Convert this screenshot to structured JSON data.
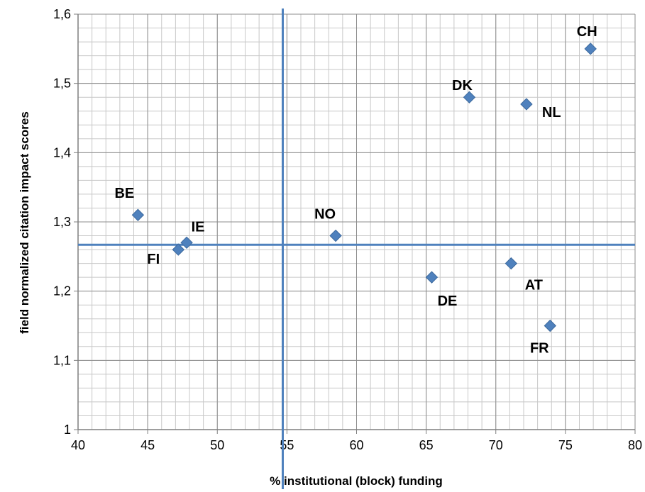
{
  "chart_data": {
    "type": "scatter",
    "title": "",
    "xlabel": "% institutional (block) funding",
    "ylabel": "field normalized citation impact scores",
    "xlim": [
      40,
      80
    ],
    "ylim": [
      1.0,
      1.6
    ],
    "x_ticks": [
      40,
      45,
      50,
      55,
      60,
      65,
      70,
      75,
      80
    ],
    "y_ticks": [
      1.0,
      1.1,
      1.2,
      1.3,
      1.4,
      1.5,
      1.6
    ],
    "x_tick_labels": [
      "40",
      "45",
      "50",
      "55",
      "60",
      "65",
      "70",
      "75",
      "80"
    ],
    "y_tick_labels": [
      "1",
      "1,1",
      "1,2",
      "1,3",
      "1,4",
      "1,5",
      "1,6"
    ],
    "grid": true,
    "marker": "diamond",
    "marker_color": "#4F81BD",
    "reference_line_color": "#4F81BD",
    "reference_lines": {
      "x": 54.7,
      "y": 1.267
    },
    "points": [
      {
        "label": "CH",
        "x": 76.8,
        "y": 1.55
      },
      {
        "label": "DK",
        "x": 68.1,
        "y": 1.48
      },
      {
        "label": "NL",
        "x": 72.2,
        "y": 1.47
      },
      {
        "label": "BE",
        "x": 44.3,
        "y": 1.31
      },
      {
        "label": "IE",
        "x": 47.8,
        "y": 1.27
      },
      {
        "label": "FI",
        "x": 47.2,
        "y": 1.26
      },
      {
        "label": "NO",
        "x": 58.5,
        "y": 1.28
      },
      {
        "label": "AT",
        "x": 71.1,
        "y": 1.24
      },
      {
        "label": "DE",
        "x": 65.4,
        "y": 1.22
      },
      {
        "label": "FR",
        "x": 73.9,
        "y": 1.15
      }
    ]
  }
}
